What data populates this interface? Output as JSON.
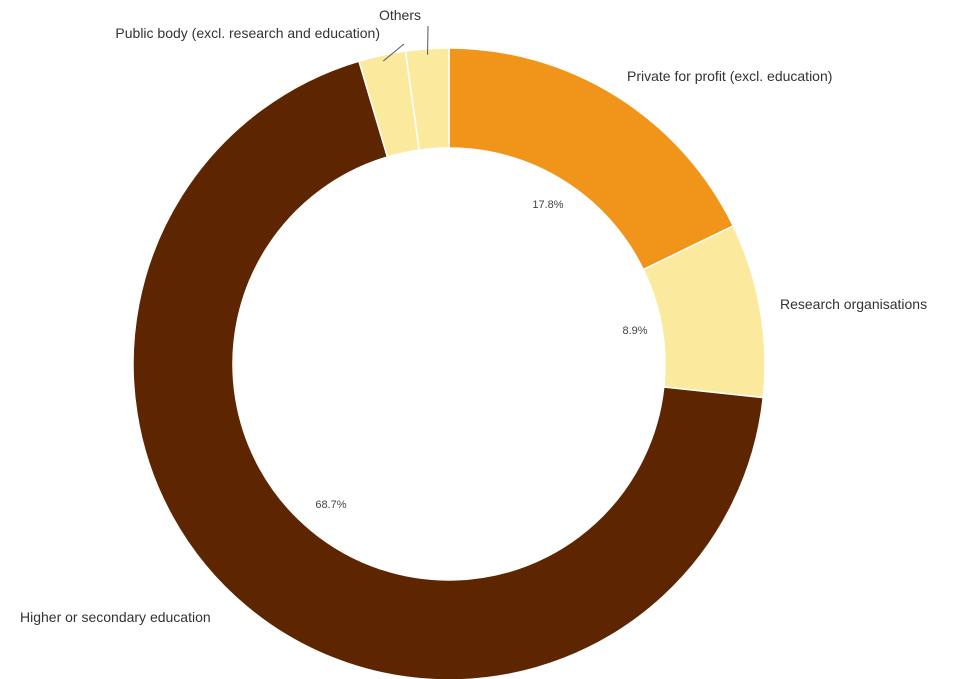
{
  "chart_data": {
    "type": "pie",
    "donut": true,
    "categories": [
      "Private for profit (excl. education)",
      "Research organisations",
      "Higher or secondary education",
      "Public body (excl. research and education)",
      "Others"
    ],
    "values": [
      17.8,
      8.9,
      68.7,
      2.4,
      2.2
    ],
    "value_labels": [
      "17.8%",
      "8.9%",
      "68.7%",
      "",
      ""
    ],
    "colors": [
      "#F0941A",
      "#FBEA9E",
      "#5E2600",
      "#FBEA9E",
      "#FBEA9E"
    ],
    "title": "",
    "legend": "none"
  }
}
